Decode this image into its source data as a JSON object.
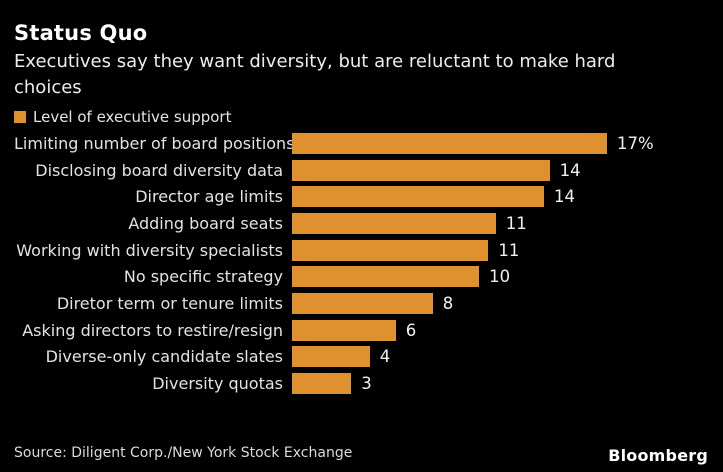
{
  "header": {
    "title": "Status Quo",
    "subtitle_line1": "Executives say they want diversity, but are reluctant to make hard",
    "subtitle_line2": "choices"
  },
  "legend": {
    "label": "Level of executive support"
  },
  "chart_data": {
    "type": "bar",
    "orientation": "horizontal",
    "title": "Status Quo",
    "subtitle": "Executives say they want diversity, but are reluctant to make hard choices",
    "legend_entries": [
      "Level of executive support"
    ],
    "unit": "%",
    "xlim": [
      0,
      19
    ],
    "grid": false,
    "axis_labels_shown": false,
    "categories": [
      "Limiting number of board positions",
      "Disclosing board diversity data",
      "Director age limits",
      "Adding board seats",
      "Working with diversity specialists",
      "No specific strategy",
      "Diretor term or tenure limits",
      "Asking directors to restire/resign",
      "Diverse-only candidate slates",
      "Diversity quotas"
    ],
    "values": [
      17,
      14,
      14,
      11,
      11,
      10,
      8,
      6,
      4,
      3
    ],
    "value_labels": [
      "17%",
      "14",
      "14",
      "11",
      "11",
      "10",
      "8",
      "6",
      "4",
      "3"
    ],
    "precise_values": [
      17.0,
      13.9,
      13.6,
      11.0,
      10.6,
      10.1,
      7.6,
      5.6,
      4.2,
      3.2
    ],
    "colors": {
      "bar": "#e0912f",
      "background": "#000000",
      "label_text": "#e3e3e3",
      "value_text": "#f0f0f0"
    }
  },
  "footer": {
    "source": "Source: Diligent Corp./New York Stock Exchange",
    "logo": "Bloomberg"
  }
}
